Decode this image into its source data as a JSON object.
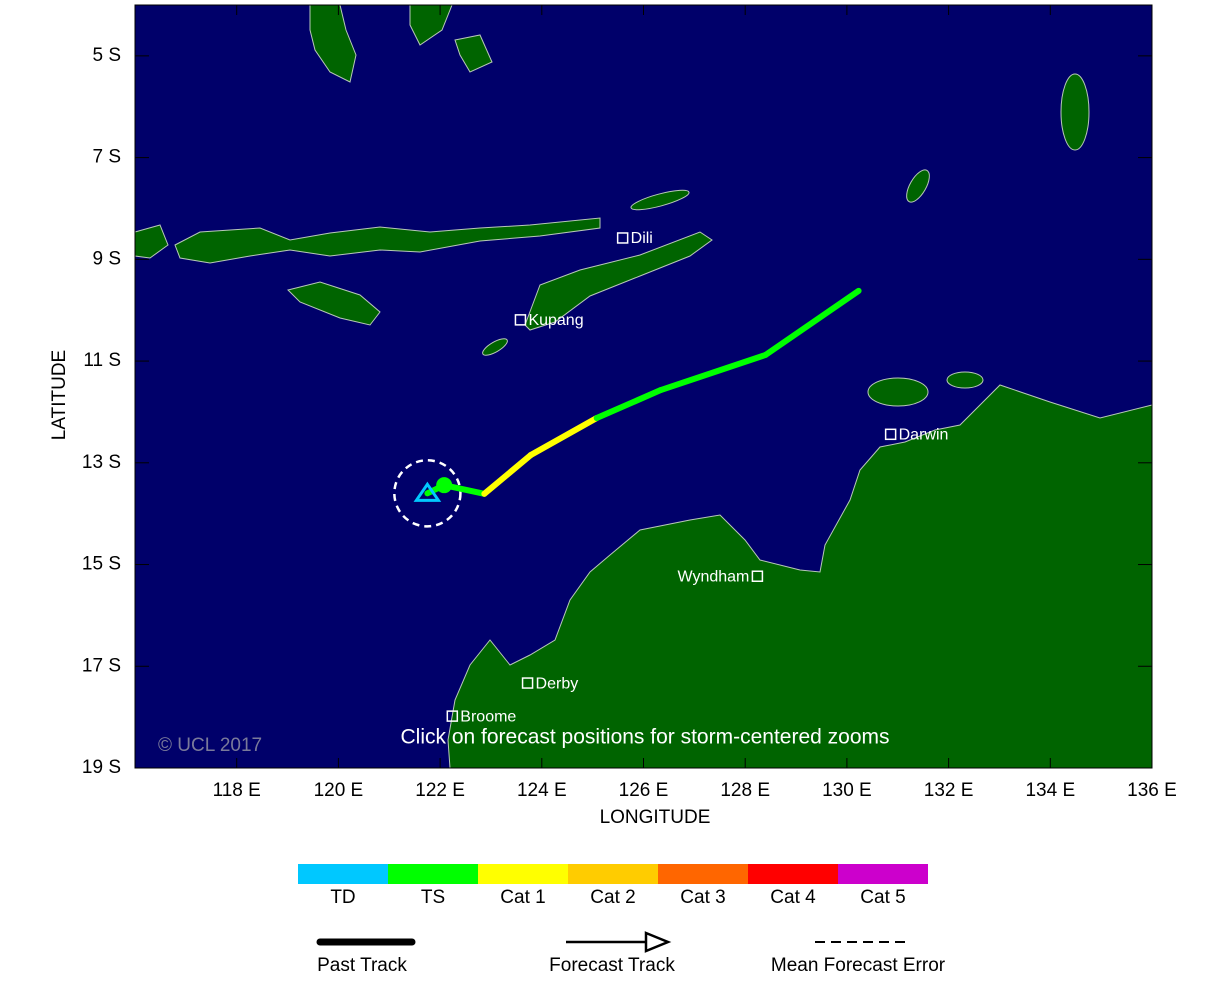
{
  "map": {
    "xlabel": "LONGITUDE",
    "ylabel": "LATITUDE",
    "xlim": [
      116,
      136
    ],
    "ylim": [
      -4,
      -19
    ],
    "xticks": [
      {
        "value": 118,
        "label": "118 E"
      },
      {
        "value": 120,
        "label": "120 E"
      },
      {
        "value": 122,
        "label": "122 E"
      },
      {
        "value": 124,
        "label": "124 E"
      },
      {
        "value": 126,
        "label": "126 E"
      },
      {
        "value": 128,
        "label": "128 E"
      },
      {
        "value": 130,
        "label": "130 E"
      },
      {
        "value": 132,
        "label": "132 E"
      },
      {
        "value": 134,
        "label": "134 E"
      },
      {
        "value": 136,
        "label": "136 E"
      }
    ],
    "yticks": [
      {
        "value": -5,
        "label": "5 S"
      },
      {
        "value": -7,
        "label": "7 S"
      },
      {
        "value": -9,
        "label": "9 S"
      },
      {
        "value": -11,
        "label": "11 S"
      },
      {
        "value": -13,
        "label": "13 S"
      },
      {
        "value": -15,
        "label": "15 S"
      },
      {
        "value": -17,
        "label": "17 S"
      },
      {
        "value": -19,
        "label": "19 S"
      }
    ],
    "copyright": "© UCL 2017",
    "note": "Click on forecast positions for storm-centered zooms",
    "cities": [
      {
        "name": "Dili",
        "lon": 125.59,
        "lat": -8.58
      },
      {
        "name": "Kupang",
        "lon": 123.58,
        "lat": -10.19
      },
      {
        "name": "Darwin",
        "lon": 130.86,
        "lat": -12.44
      },
      {
        "name": "Wyndham",
        "lon": 128.24,
        "lat": -15.23,
        "label_side": "left"
      },
      {
        "name": "Derby",
        "lon": 123.72,
        "lat": -17.33
      },
      {
        "name": "Broome",
        "lon": 122.24,
        "lat": -17.98
      }
    ],
    "current": {
      "lon": 121.75,
      "lat": -13.6,
      "color": "#00c8ff",
      "error_radius": 0.65
    },
    "forecast": [
      {
        "lon": 122.08,
        "lat": -13.44,
        "color": "#00ff00"
      },
      {
        "lon": 122.87,
        "lat": -13.61,
        "color": "#00ff00"
      },
      {
        "lon": 123.78,
        "lat": -12.85,
        "color": "#ffff00"
      },
      {
        "lon": 125.08,
        "lat": -12.12,
        "color": "#ffff00"
      },
      {
        "lon": 126.34,
        "lat": -11.57,
        "color": "#00ff00"
      },
      {
        "lon": 128.4,
        "lat": -10.88,
        "color": "#00ff00"
      },
      {
        "lon": 130.23,
        "lat": -9.62,
        "color": "#00ff00"
      }
    ]
  },
  "legend": {
    "categories": [
      {
        "name": "TD",
        "color": "#00c8ff"
      },
      {
        "name": "TS",
        "color": "#00ff00"
      },
      {
        "name": "Cat 1",
        "color": "#ffff00"
      },
      {
        "name": "Cat 2",
        "color": "#ffcc00"
      },
      {
        "name": "Cat 3",
        "color": "#ff6600"
      },
      {
        "name": "Cat 4",
        "color": "#ff0000"
      },
      {
        "name": "Cat 5",
        "color": "#cc00cc"
      }
    ],
    "past_track": "Past Track",
    "forecast_track": "Forecast Track",
    "mean_error": "Mean Forecast Error"
  }
}
